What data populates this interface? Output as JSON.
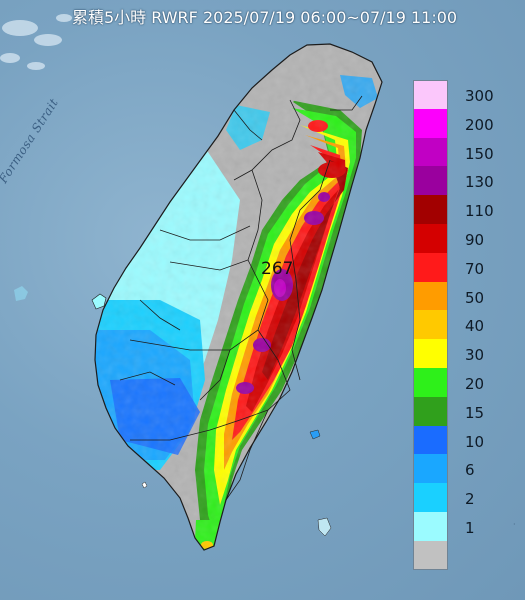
{
  "map": {
    "title": "累積5小時 RWRF 2025/07/19 06:00~07/19 11:00",
    "water_label": "Formosa Strait",
    "max_value": "267",
    "colors": {
      "sea": "#7aa3c2",
      "land_nodata": "#b3b3b3",
      "border": "#2a2a2a"
    }
  },
  "legend": {
    "items": [
      {
        "label": "300",
        "color": "#fbc7fb"
      },
      {
        "label": "200",
        "color": "#fc00fc"
      },
      {
        "label": "150",
        "color": "#c100c4"
      },
      {
        "label": "130",
        "color": "#9a009e"
      },
      {
        "label": "110",
        "color": "#a20000"
      },
      {
        "label": "90",
        "color": "#d40000"
      },
      {
        "label": "70",
        "color": "#ff1a1a"
      },
      {
        "label": "50",
        "color": "#ff9c00"
      },
      {
        "label": "40",
        "color": "#ffc900"
      },
      {
        "label": "30",
        "color": "#ffff00"
      },
      {
        "label": "20",
        "color": "#2ef01a"
      },
      {
        "label": "15",
        "color": "#30a01c"
      },
      {
        "label": "10",
        "color": "#1a6cff"
      },
      {
        "label": "6",
        "color": "#1aa7ff"
      },
      {
        "label": "2",
        "color": "#1ad0ff"
      },
      {
        "label": "1",
        "color": "#9bfbff"
      },
      {
        "label": "",
        "color": "#c1c1c1"
      }
    ]
  }
}
